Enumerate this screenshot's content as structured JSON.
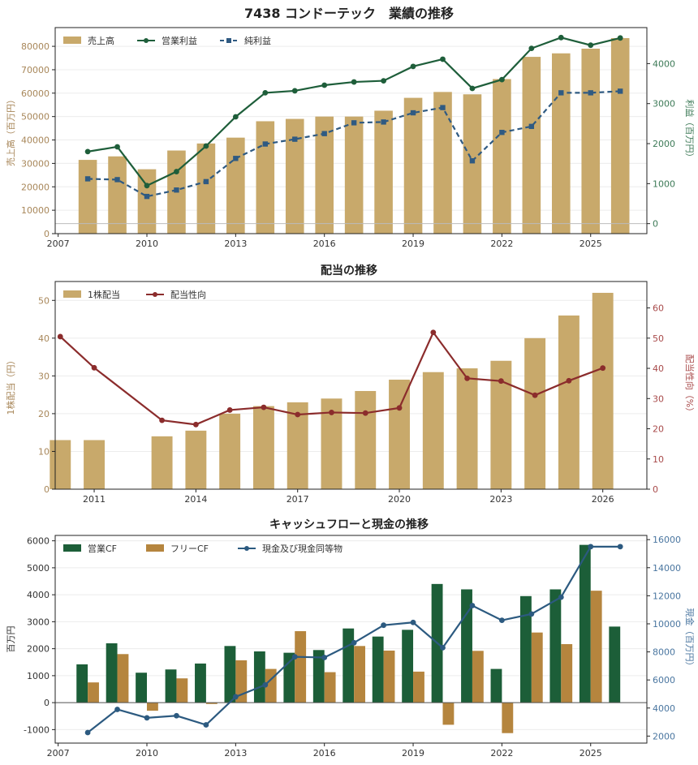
{
  "title": "7438 コンドーテック　業績の推移",
  "chart_data": [
    {
      "type": "bar",
      "title": "",
      "xlabel": "",
      "xlim": [
        2006.9,
        2026.9
      ],
      "xticks": [
        2007,
        2010,
        2013,
        2016,
        2019,
        2022,
        2025
      ],
      "left_axis": {
        "label": "売上高（百万円）",
        "ylim": [
          0,
          88000
        ],
        "ticks": [
          0,
          10000,
          20000,
          30000,
          40000,
          50000,
          60000,
          70000,
          80000
        ],
        "color": "#a8875a"
      },
      "right_axis": {
        "label": "利益（百万円）",
        "ylim": [
          -250,
          4900
        ],
        "ticks": [
          0,
          1000,
          2000,
          3000,
          4000
        ],
        "color": "#3d7a57"
      },
      "reference_line": {
        "axis": "right",
        "y": 0
      },
      "legend": {
        "position": "top-left",
        "entries": [
          "売上高",
          "営業利益",
          "純利益"
        ]
      },
      "grid": true,
      "series": [
        {
          "name": "売上高",
          "type": "bar",
          "axis": "left",
          "color": "#c8a96b",
          "x": [
            2008,
            2009,
            2010,
            2011,
            2012,
            2013,
            2014,
            2015,
            2016,
            2017,
            2018,
            2019,
            2020,
            2021,
            2022,
            2023,
            2024,
            2025,
            2026
          ],
          "values": [
            31500,
            33000,
            27500,
            35500,
            38500,
            41000,
            48000,
            49000,
            50000,
            50000,
            52500,
            58000,
            60500,
            59500,
            66000,
            75500,
            77000,
            79000,
            83500
          ]
        },
        {
          "name": "営業利益",
          "type": "line",
          "axis": "right",
          "color": "#1e5e3a",
          "marker": "circle",
          "dash": false,
          "x": [
            2008,
            2009,
            2010,
            2011,
            2012,
            2013,
            2014,
            2015,
            2016,
            2017,
            2018,
            2019,
            2020,
            2021,
            2022,
            2023,
            2024,
            2025,
            2026
          ],
          "values": [
            1800,
            1920,
            950,
            1300,
            1940,
            2670,
            3270,
            3320,
            3460,
            3540,
            3570,
            3930,
            4110,
            3380,
            3600,
            4380,
            4650,
            4460,
            4640
          ]
        },
        {
          "name": "純利益",
          "type": "line",
          "axis": "right",
          "color": "#2f5a82",
          "marker": "square",
          "dash": true,
          "x": [
            2008,
            2009,
            2010,
            2011,
            2012,
            2013,
            2014,
            2015,
            2016,
            2017,
            2018,
            2019,
            2020,
            2021,
            2022,
            2023,
            2024,
            2025,
            2026
          ],
          "values": [
            1120,
            1100,
            680,
            840,
            1050,
            1630,
            1990,
            2110,
            2250,
            2520,
            2540,
            2770,
            2900,
            1570,
            2280,
            2430,
            3270,
            3270,
            3310
          ]
        }
      ]
    },
    {
      "type": "bar",
      "title": "配当の推移",
      "xlabel": "",
      "xlim": [
        2009.85,
        2027.3
      ],
      "xticks": [
        2011,
        2014,
        2017,
        2020,
        2023,
        2026
      ],
      "left_axis": {
        "label": "1株配当（円）",
        "ylim": [
          0,
          55
        ],
        "ticks": [
          0,
          10,
          20,
          30,
          40,
          50
        ],
        "color": "#a8875a"
      },
      "right_axis": {
        "label": "配当性向（%）",
        "ylim": [
          0,
          68.75
        ],
        "ticks": [
          0,
          10,
          20,
          30,
          40,
          50,
          60
        ],
        "color": "#a84a4a"
      },
      "legend": {
        "position": "top-left",
        "entries": [
          "1株配当",
          "配当性向"
        ]
      },
      "grid": true,
      "series": [
        {
          "name": "1株配当",
          "type": "bar",
          "axis": "left",
          "color": "#c8a96b",
          "x": [
            2010,
            2011,
            2013,
            2014,
            2015,
            2016,
            2017,
            2018,
            2019,
            2020,
            2021,
            2022,
            2023,
            2024,
            2025,
            2026
          ],
          "values": [
            13,
            13,
            14,
            15.5,
            20,
            22,
            23,
            24,
            26,
            29,
            31,
            32,
            34,
            40,
            46,
            52
          ]
        },
        {
          "name": "配当性向",
          "type": "line",
          "axis": "right",
          "color": "#8b2c2c",
          "marker": "circle",
          "dash": false,
          "x": [
            2010,
            2011,
            2013,
            2014,
            2015,
            2016,
            2017,
            2018,
            2019,
            2020,
            2021,
            2022,
            2023,
            2024,
            2025,
            2026
          ],
          "values": [
            50.5,
            40.2,
            22.8,
            21.4,
            26.2,
            27.1,
            24.7,
            25.4,
            25.2,
            26.9,
            51.9,
            36.7,
            35.8,
            31.1,
            35.9,
            40.1
          ]
        }
      ]
    },
    {
      "type": "bar",
      "title": "キャッシュフローと現金の推移",
      "xlabel": "",
      "xlim": [
        2006.9,
        2026.9
      ],
      "xticks": [
        2007,
        2010,
        2013,
        2016,
        2019,
        2022,
        2025
      ],
      "left_axis": {
        "label": "百万円",
        "ylim": [
          -1500,
          6200
        ],
        "ticks": [
          -1000,
          0,
          1000,
          2000,
          3000,
          4000,
          5000,
          6000
        ],
        "color": "#333333"
      },
      "right_axis": {
        "label": "現金（百万円）",
        "ylim": [
          1500,
          16300
        ],
        "ticks": [
          2000,
          4000,
          6000,
          8000,
          10000,
          12000,
          14000,
          16000
        ],
        "color": "#4a76a0"
      },
      "reference_line": {
        "axis": "left",
        "y": 0
      },
      "legend": {
        "position": "top-left",
        "entries": [
          "営業CF",
          "フリーCF",
          "現金及び現金同等物"
        ]
      },
      "grid": true,
      "series": [
        {
          "name": "営業CF",
          "type": "bar",
          "axis": "left",
          "color": "#1c5e38",
          "offset": -1,
          "x": [
            2008,
            2009,
            2010,
            2011,
            2012,
            2013,
            2014,
            2015,
            2016,
            2017,
            2018,
            2019,
            2020,
            2021,
            2022,
            2023,
            2024,
            2025,
            2026
          ],
          "values": [
            1420,
            2200,
            1110,
            1230,
            1450,
            2100,
            1900,
            1850,
            1950,
            2750,
            2450,
            2700,
            4400,
            4200,
            1250,
            3950,
            4200,
            5850,
            2820
          ]
        },
        {
          "name": "フリーCF",
          "type": "bar",
          "axis": "left",
          "color": "#b5853e",
          "offset": 1,
          "x": [
            2008,
            2009,
            2010,
            2011,
            2012,
            2013,
            2014,
            2015,
            2016,
            2017,
            2018,
            2019,
            2020,
            2021,
            2022,
            2023,
            2024,
            2025
          ],
          "values": [
            750,
            1800,
            -300,
            900,
            -50,
            1570,
            1250,
            2650,
            1130,
            2100,
            1930,
            1150,
            -820,
            1920,
            -1130,
            2600,
            2170,
            4150
          ]
        },
        {
          "name": "現金及び現金同等物",
          "type": "line",
          "axis": "right",
          "color": "#2c5a80",
          "marker": "circle",
          "dash": false,
          "x": [
            2008,
            2009,
            2010,
            2011,
            2012,
            2013,
            2014,
            2015,
            2016,
            2017,
            2018,
            2019,
            2020,
            2021,
            2022,
            2023,
            2024,
            2025,
            2026
          ],
          "values": [
            2250,
            3900,
            3300,
            3450,
            2800,
            4800,
            5650,
            7650,
            7600,
            8650,
            9900,
            10100,
            8300,
            11300,
            10250,
            10700,
            11900,
            15500,
            15500
          ]
        }
      ]
    }
  ]
}
